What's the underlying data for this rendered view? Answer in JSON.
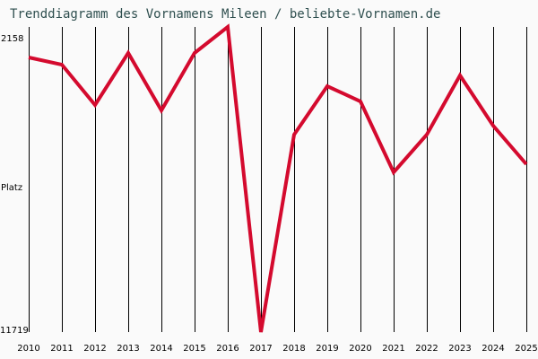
{
  "title": "Trenddiagramm des Vornamens Mileen / beliebte-Vornamen.de",
  "colors": {
    "line": "#d40a2e",
    "grid": "#000000",
    "title": "#2f4f4f",
    "background": "#fafafa"
  },
  "chart_data": {
    "type": "line",
    "title": "Trenddiagramm des Vornamens Mileen / beliebte-Vornamen.de",
    "xlabel": "",
    "ylabel": "Platz",
    "y_inverted": true,
    "ylim": [
      2158,
      11719
    ],
    "y_tick_labels": {
      "top": "2158",
      "middle": "Platz",
      "bottom": "11719"
    },
    "categories": [
      "2010",
      "2011",
      "2012",
      "2013",
      "2014",
      "2015",
      "2016",
      "2017",
      "2018",
      "2019",
      "2020",
      "2021",
      "2022",
      "2023",
      "2024",
      "2025"
    ],
    "series": [
      {
        "name": "Mileen",
        "values": [
          3114,
          3339,
          4604,
          2974,
          4773,
          2974,
          2158,
          11719,
          5533,
          4014,
          4492,
          6714,
          5533,
          3677,
          5252,
          6461
        ]
      }
    ],
    "grid": {
      "vertical": true,
      "horizontal": false
    },
    "legend": null
  }
}
